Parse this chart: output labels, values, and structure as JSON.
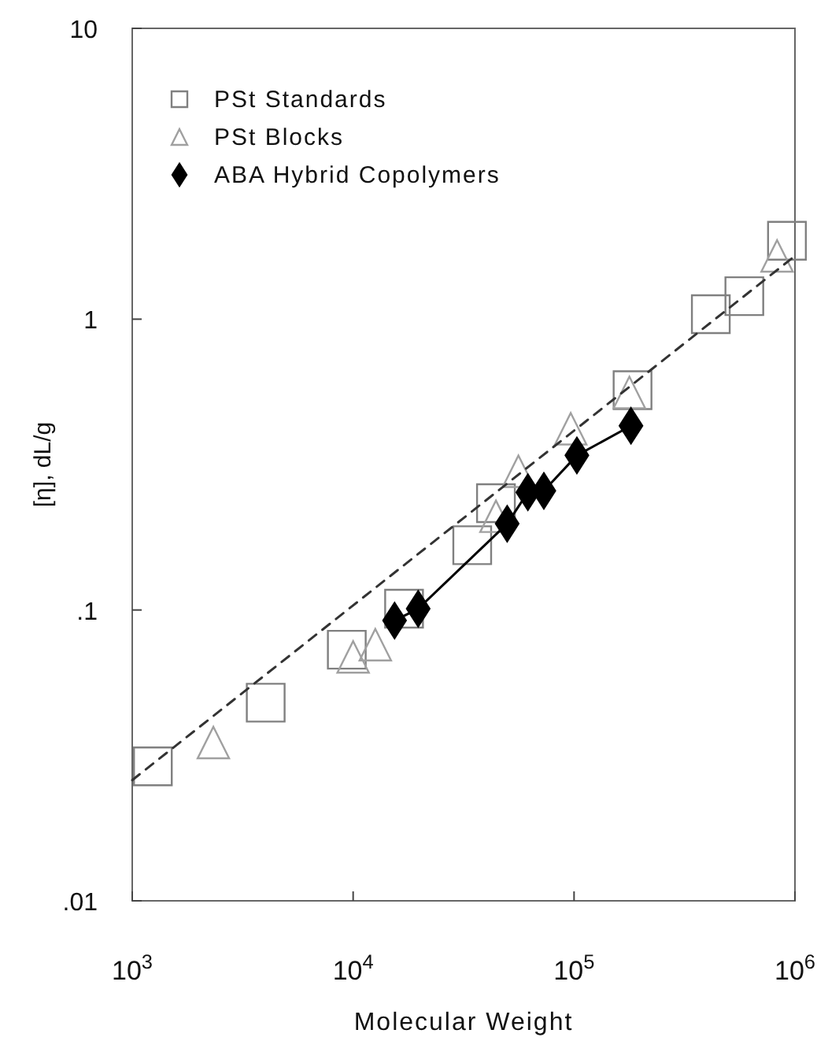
{
  "chart_data": {
    "type": "scatter",
    "xlabel": "Molecular Weight",
    "ylabel": "[η], dL/g",
    "log": "xy",
    "grid": false,
    "legend": "top left",
    "xlim": [
      1000,
      1000000
    ],
    "xticks": [
      {
        "value": 1000,
        "label": "10$^{3}$"
      },
      {
        "value": 10000,
        "label": "10$^{4}$"
      },
      {
        "value": 100000,
        "label": "10$^{5}$"
      },
      {
        "value": 1000000,
        "label": "10$^{6}$"
      }
    ],
    "ylim": [
      0.01,
      10
    ],
    "yticks": [
      {
        "value": 0.01,
        "label": ".01"
      },
      {
        "value": 0.1,
        "label": ".1"
      },
      1,
      10
    ],
    "series": [
      {
        "name": "PSt Standards",
        "marker": "square",
        "color": "#808080",
        "x": [
          1240,
          4020,
          9360,
          17000,
          34600,
          44300,
          184000,
          416000,
          590000,
          920000
        ],
        "values": [
          0.029,
          0.048,
          0.073,
          0.101,
          0.167,
          0.233,
          0.57,
          1.04,
          1.2,
          1.86
        ]
      },
      {
        "name": "PSt Blocks",
        "marker": "triangle",
        "color": "#a0a0a0",
        "x": [
          2330,
          10000,
          12600,
          44300,
          56000,
          96600,
          178000,
          830000
        ],
        "values": [
          0.035,
          0.069,
          0.076,
          0.21,
          0.3,
          0.42,
          0.56,
          1.65
        ]
      },
      {
        "name": "ABA Hybrid Copolymers",
        "type": "line",
        "marker": "diamond",
        "line_style": "solid",
        "color": "#000000",
        "x": [
          15400,
          19700,
          49800,
          61800,
          73000,
          103000,
          181000
        ],
        "values": [
          0.092,
          0.101,
          0.198,
          0.254,
          0.257,
          0.34,
          0.43
        ]
      },
      {
        "type": "line",
        "marker": "none",
        "line_style": "dashed",
        "color": "#333333",
        "x": [
          1000,
          1000000
        ],
        "values": [
          0.026,
          1.65
        ]
      }
    ]
  }
}
